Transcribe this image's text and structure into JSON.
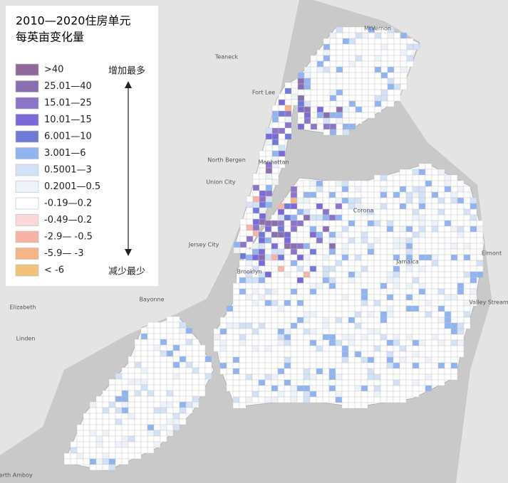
{
  "legend": {
    "title_lines": [
      "2010—2020住房单元",
      "每英亩变化量"
    ],
    "items": [
      {
        "label": ">40",
        "color": "#8e6a9c"
      },
      {
        "label": "25.01—40",
        "color": "#8a6fb0"
      },
      {
        "label": "15.01—25",
        "color": "#8c74c8"
      },
      {
        "label": "10.01—15",
        "color": "#7a6ad8"
      },
      {
        "label": "6.001—10",
        "color": "#6f7ad6"
      },
      {
        "label": "3.001—6",
        "color": "#8fb4f0"
      },
      {
        "label": "0.5001—3",
        "color": "#d4e2f7"
      },
      {
        "label": "0.2001—0.5",
        "color": "#eef3fb"
      },
      {
        "label": "-0.19—0.2",
        "color": "#ffffff"
      },
      {
        "label": "-0.49—0.2",
        "color": "#fbd8d8"
      },
      {
        "label": "-2.9— -0.5",
        "color": "#f7b3a6"
      },
      {
        "label": "-5.9— -3",
        "color": "#f5b585"
      },
      {
        "label": "< -6",
        "color": "#f0c27a"
      }
    ],
    "arrow_top": "增加最多",
    "arrow_bottom": "减少最少"
  },
  "places": [
    "MtVernon",
    "Teaneck",
    "Fort Lee",
    "North Bergen",
    "Manhattan",
    "Union City",
    "Jersey City",
    "Brooklyn",
    "Bayonne",
    "Elizabeth",
    "Linden",
    "Corona",
    "Jamaica",
    "Elmont",
    "Valley Stream",
    "Perth Amboy"
  ]
}
